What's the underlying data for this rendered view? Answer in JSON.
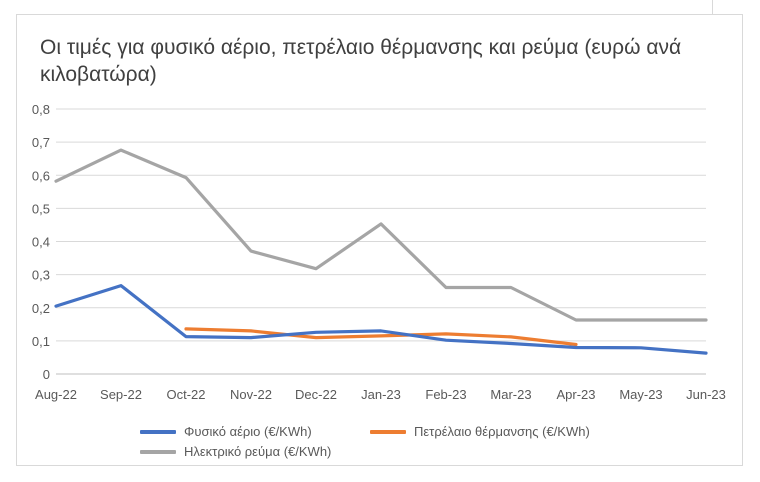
{
  "chart_data": {
    "type": "line",
    "title": "Οι τιμές για φυσικό αέριο, πετρέλαιο θέρμανσης και ρεύμα (ευρώ ανά κιλοβατώρα)",
    "xlabel": "",
    "ylabel": "",
    "categories": [
      "Aug-22",
      "Sep-22",
      "Oct-22",
      "Nov-22",
      "Dec-22",
      "Jan-23",
      "Feb-23",
      "Mar-23",
      "Apr-23",
      "May-23",
      "Jun-23"
    ],
    "ylim": [
      0,
      0.8
    ],
    "yticks": [
      0,
      0.1,
      0.2,
      0.3,
      0.4,
      0.5,
      0.6,
      0.7,
      0.8
    ],
    "ytick_labels": [
      "0",
      "0,1",
      "0,2",
      "0,3",
      "0,4",
      "0,5",
      "0,6",
      "0,7",
      "0,8"
    ],
    "grid": true,
    "legend_position": "bottom",
    "series": [
      {
        "name": "Φυσικό αέριο (€/KWh)",
        "color": "#4472c4",
        "values": [
          0.205,
          0.267,
          0.113,
          0.11,
          0.126,
          0.13,
          0.102,
          0.092,
          0.08,
          0.079,
          0.063
        ]
      },
      {
        "name": "Πετρέλαιο θέρμανσης (€/KWh)",
        "color": "#ed7d31",
        "values": [
          null,
          null,
          0.136,
          0.13,
          0.11,
          0.115,
          0.121,
          0.112,
          0.089,
          null,
          null
        ]
      },
      {
        "name": "Ηλεκτρικό ρεύμα (€/KWh)",
        "color": "#a5a5a5",
        "values": [
          0.582,
          0.676,
          0.593,
          0.371,
          0.318,
          0.453,
          0.261,
          0.261,
          0.163,
          0.163,
          0.163
        ]
      }
    ]
  }
}
